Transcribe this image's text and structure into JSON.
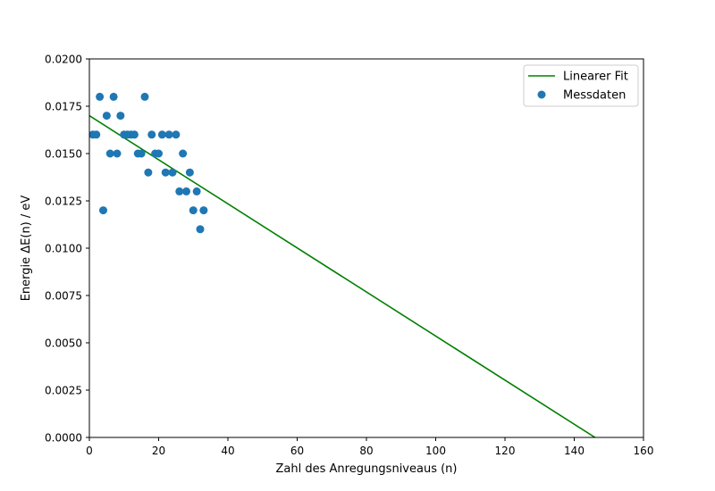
{
  "chart_data": {
    "type": "scatter",
    "xlabel": "Zahl des Anregungsniveaus (n)",
    "ylabel": "Energie ΔE(n) / eV",
    "xlim": [
      0,
      160
    ],
    "ylim": [
      0,
      0.02
    ],
    "x_ticks": [
      "0",
      "20",
      "40",
      "60",
      "80",
      "100",
      "120",
      "140",
      "160"
    ],
    "y_ticks": [
      "0.0000",
      "0.0025",
      "0.0050",
      "0.0075",
      "0.0100",
      "0.0125",
      "0.0150",
      "0.0175",
      "0.0200"
    ],
    "x_tick_values": [
      0,
      20,
      40,
      60,
      80,
      100,
      120,
      140,
      160
    ],
    "y_tick_values": [
      0,
      0.0025,
      0.005,
      0.0075,
      0.01,
      0.0125,
      0.015,
      0.0175,
      0.02
    ],
    "grid": false,
    "legend_position": "top-right",
    "series": [
      {
        "name": "Linearer Fit",
        "kind": "line",
        "color": "#008000",
        "x": [
          0,
          146
        ],
        "y": [
          0.017,
          0.0
        ]
      },
      {
        "name": "Messdaten",
        "kind": "scatter",
        "color": "#1f77b4",
        "x": [
          1,
          2,
          3,
          4,
          5,
          6,
          7,
          8,
          9,
          10,
          11,
          12,
          13,
          14,
          15,
          16,
          17,
          18,
          19,
          20,
          21,
          22,
          23,
          24,
          25,
          26,
          27,
          28,
          29,
          30,
          31,
          32,
          33
        ],
        "y": [
          0.016,
          0.016,
          0.018,
          0.012,
          0.017,
          0.015,
          0.018,
          0.015,
          0.017,
          0.016,
          0.016,
          0.016,
          0.016,
          0.015,
          0.015,
          0.018,
          0.014,
          0.016,
          0.015,
          0.015,
          0.016,
          0.014,
          0.016,
          0.014,
          0.016,
          0.013,
          0.015,
          0.013,
          0.014,
          0.012,
          0.013,
          0.011,
          0.012
        ]
      }
    ]
  }
}
